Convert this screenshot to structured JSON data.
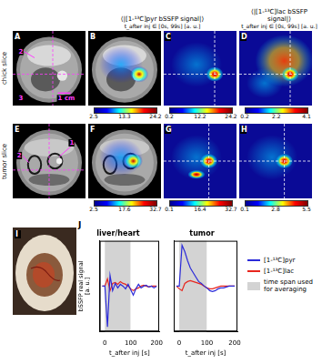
{
  "header": {
    "pyr": {
      "title": "⟨|[1-¹³C]pyr bSSFP signal|⟩",
      "subtitle": "t_after inj ∈ [0s, 99s] [a. u.]"
    },
    "lac": {
      "title": "⟨|[1-¹³C]lac bSSFP signal|⟩",
      "subtitle": "t_after inj ∈ [0s, 99s] [a. u.]"
    }
  },
  "rows": [
    {
      "label": "chick slice",
      "panels": [
        {
          "letter": "A",
          "annotations": [
            "2",
            "3",
            "1 cm"
          ]
        },
        {
          "letter": "B",
          "colorbar": {
            "range": [
              2.5,
              24.2
            ],
            "ticks": [
              2.5,
              13.3,
              24.2
            ]
          }
        },
        {
          "letter": "C",
          "colorbar": {
            "range": [
              0.2,
              24.2
            ],
            "ticks": [
              0.2,
              12.2,
              24.2
            ]
          }
        },
        {
          "letter": "D",
          "colorbar": {
            "range": [
              0.2,
              4.1
            ],
            "ticks": [
              0.2,
              2.2,
              4.1
            ]
          }
        }
      ]
    },
    {
      "label": "tumor slice",
      "panels": [
        {
          "letter": "E",
          "annotations": [
            "2",
            "1"
          ]
        },
        {
          "letter": "F",
          "colorbar": {
            "range": [
              2.5,
              32.7
            ],
            "ticks": [
              2.5,
              17.6,
              32.7
            ]
          }
        },
        {
          "letter": "G",
          "colorbar": {
            "range": [
              0.1,
              32.7
            ],
            "ticks": [
              0.1,
              16.4,
              32.7
            ]
          }
        },
        {
          "letter": "H",
          "colorbar": {
            "range": [
              0.1,
              5.5
            ],
            "ticks": [
              0.1,
              2.8,
              5.5
            ]
          }
        }
      ]
    }
  ],
  "photo": {
    "letter": "I"
  },
  "plots": {
    "letter": "J"
  },
  "chart_data": [
    {
      "type": "line",
      "title": "liver/heart",
      "x_label": "t_after inj [s]",
      "y_label": "bSSFP real signal [a. u.]",
      "x": [
        -10,
        0,
        10,
        20,
        30,
        40,
        50,
        60,
        70,
        80,
        90,
        100,
        110,
        120,
        130,
        140,
        150,
        160,
        170,
        180,
        190,
        200
      ],
      "series": [
        {
          "name": "[1-¹³C]pyr",
          "color": "#2b2bd9",
          "values": [
            0,
            0,
            -45,
            12,
            -5,
            3,
            -2,
            2,
            0,
            -3,
            2,
            -4,
            -10,
            -3,
            2,
            -2,
            0,
            1,
            -1,
            0,
            -2,
            0
          ]
        },
        {
          "name": "[1-¹³C]lac",
          "color": "#e8261e",
          "values": [
            0,
            0,
            8,
            -5,
            3,
            4,
            2,
            5,
            3,
            2,
            0,
            -3,
            -5,
            -3,
            -2,
            0,
            1,
            0,
            -1,
            0,
            0,
            0
          ]
        }
      ],
      "xlim": [
        -20,
        210
      ],
      "xticks": [
        0,
        100,
        200
      ],
      "ylim": [
        -50,
        50
      ],
      "tick_labels": "x",
      "grid": false,
      "averaging_span": {
        "label": "time span used for averaging",
        "from": 0,
        "to": 99,
        "color": "#d3d3d3"
      }
    },
    {
      "type": "line",
      "title": "tumor",
      "x_label": "t_after inj [s]",
      "x": [
        -10,
        0,
        10,
        20,
        30,
        40,
        50,
        60,
        70,
        80,
        90,
        100,
        110,
        120,
        130,
        140,
        150,
        160,
        170,
        180,
        190,
        200
      ],
      "series": [
        {
          "name": "[1-¹³C]pyr",
          "color": "#2b2bd9",
          "values": [
            0,
            0,
            45,
            38,
            28,
            20,
            15,
            10,
            5,
            3,
            0,
            -2,
            -5,
            -6,
            -5,
            -3,
            -2,
            -2,
            -1,
            0,
            0,
            0
          ]
        },
        {
          "name": "[1-¹³C]lac",
          "color": "#e8261e",
          "values": [
            0,
            -3,
            -5,
            3,
            5,
            6,
            5,
            4,
            3,
            2,
            0,
            -2,
            -3,
            -3,
            -2,
            -1,
            0,
            0,
            0,
            0,
            0,
            0
          ]
        }
      ],
      "xlim": [
        -20,
        210
      ],
      "xticks": [
        0,
        100,
        200
      ],
      "ylim": [
        -50,
        50
      ],
      "tick_labels": "x",
      "grid": false,
      "legend": "right",
      "averaging_span": {
        "label": "time span used for averaging",
        "from": 0,
        "to": 99,
        "color": "#d3d3d3"
      }
    }
  ]
}
